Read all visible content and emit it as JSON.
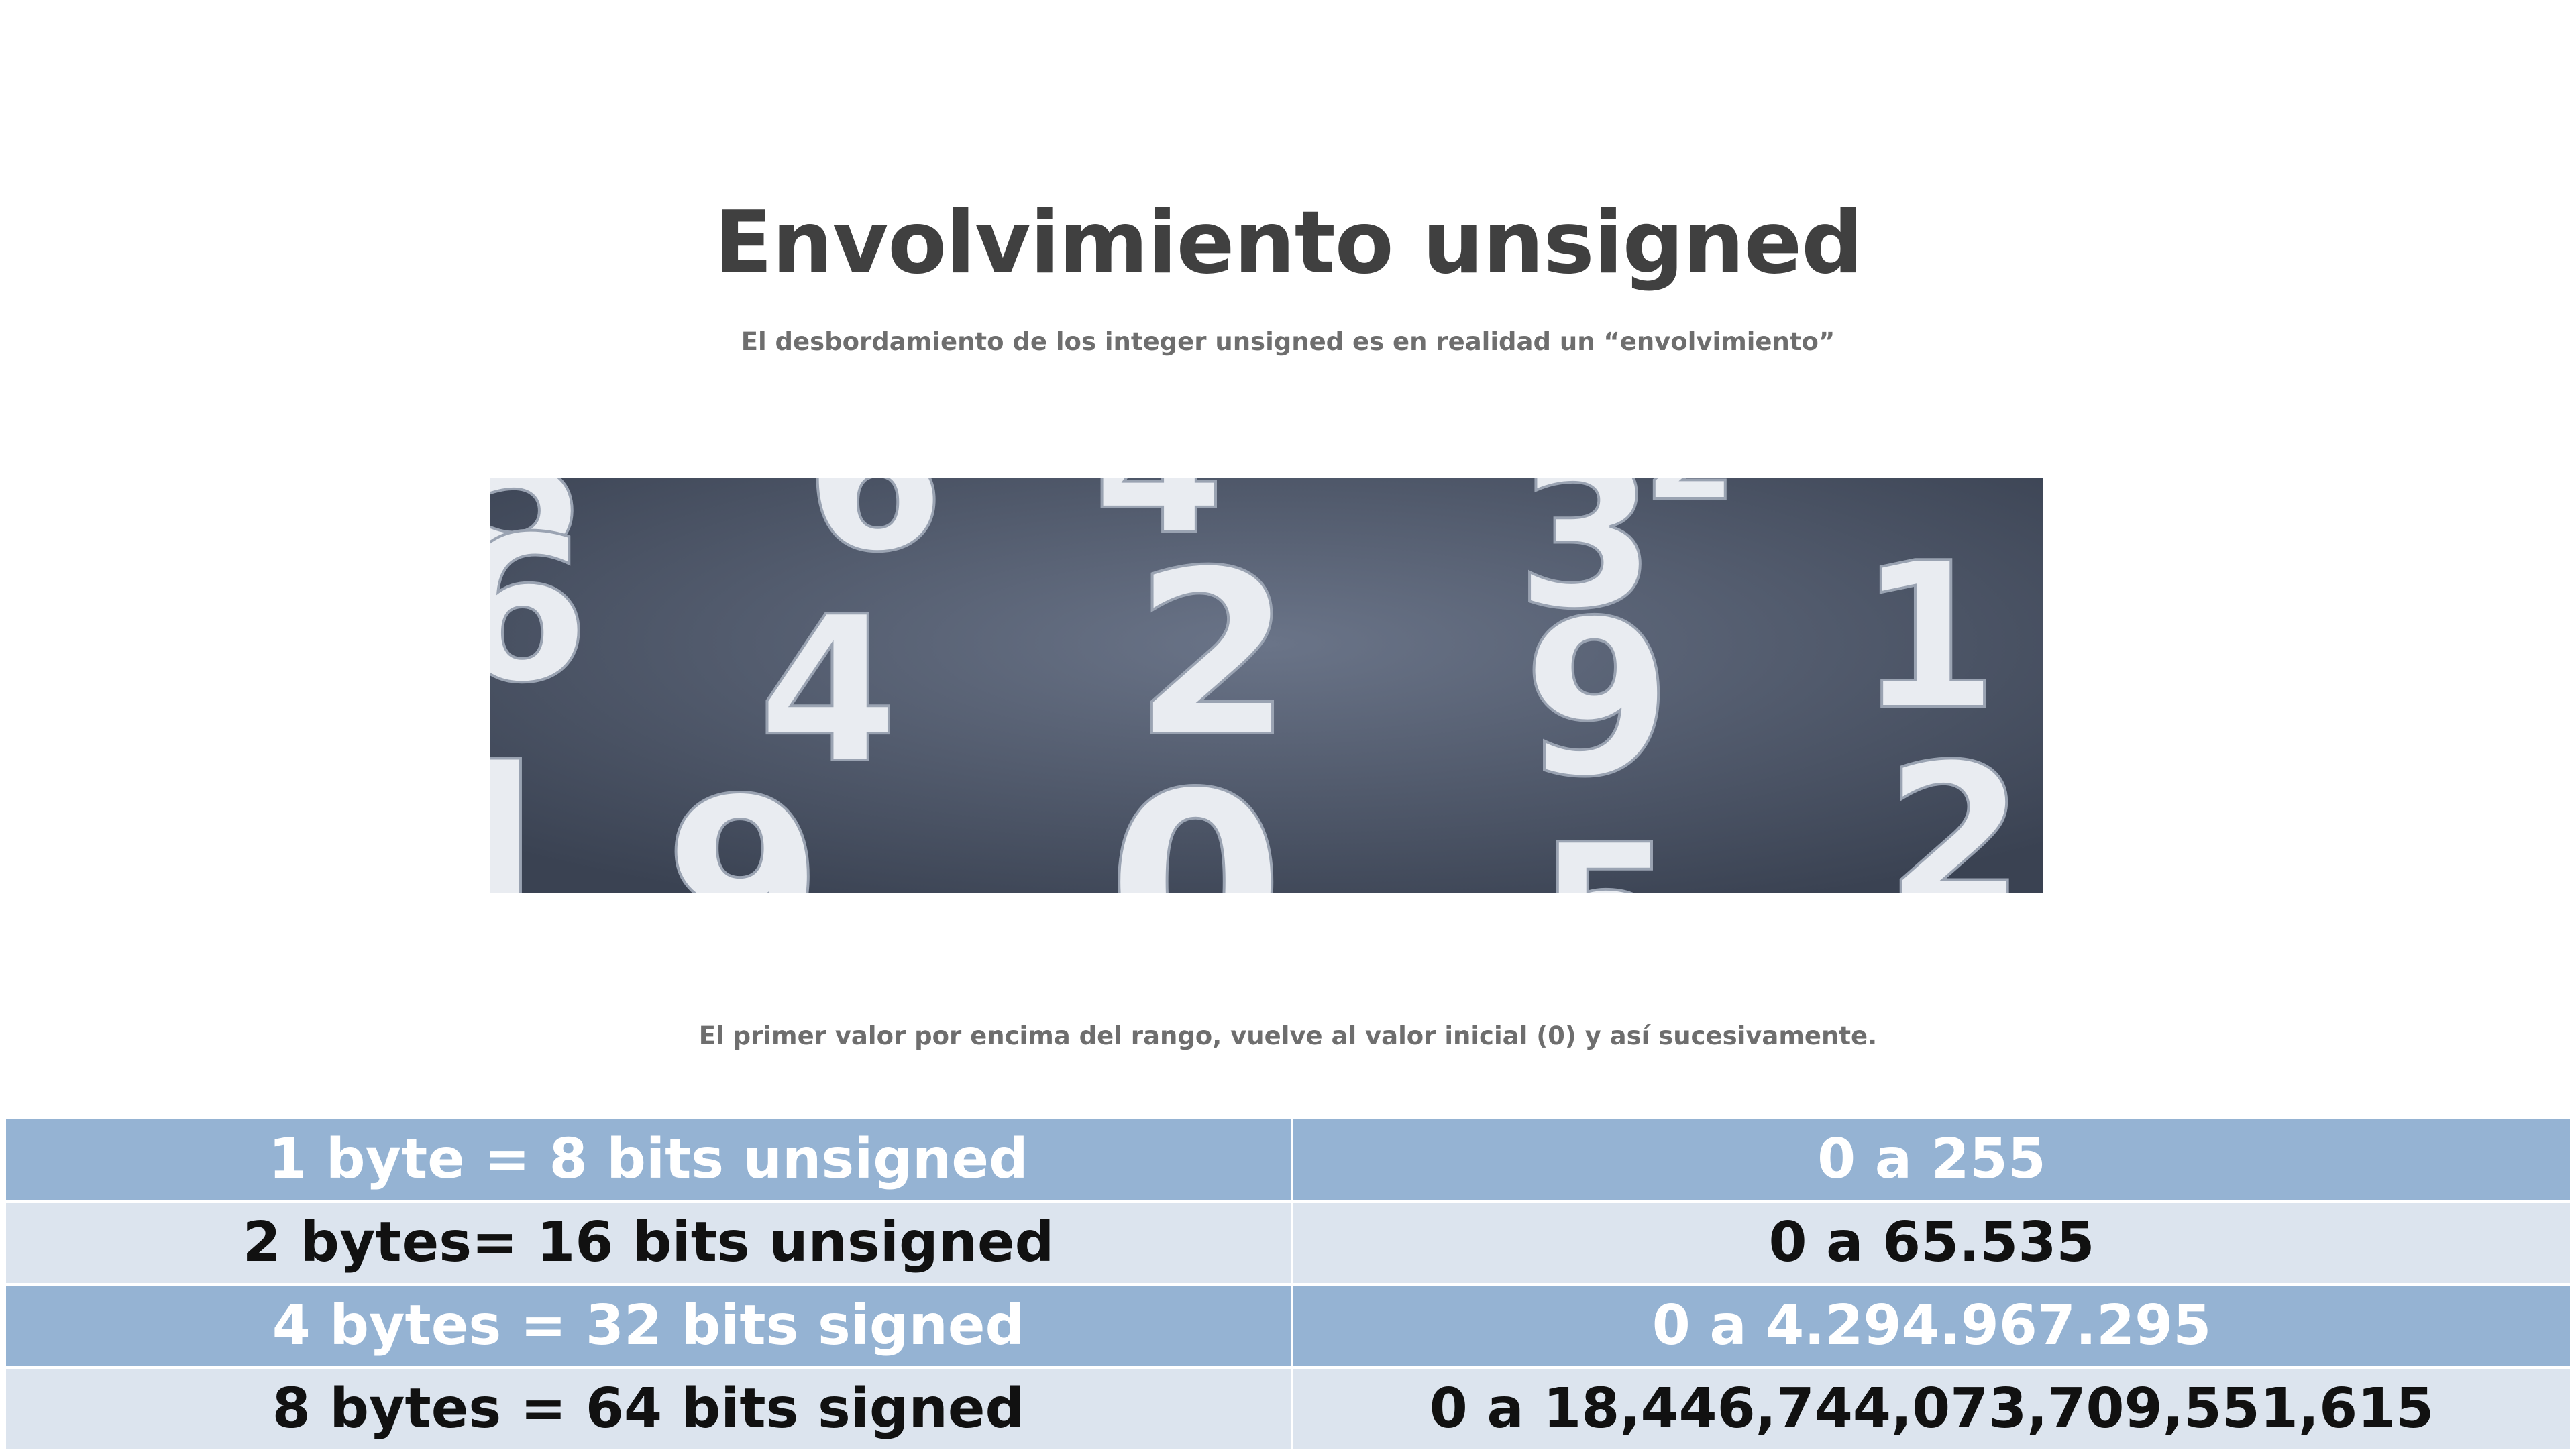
{
  "slide": {
    "title": "Envolvimiento unsigned",
    "subtitle": "El desbordamiento de los integer unsigned es en realidad un “envolvimiento”",
    "note": "El primer valor por encima del rango, vuelve al valor inicial (0) y así sucesivamente."
  },
  "photo": {
    "digits": [
      "5",
      "6",
      "4",
      "3",
      "6",
      "2",
      "1",
      "4",
      "2",
      "9",
      "9",
      "0",
      "1",
      "5",
      "2"
    ]
  },
  "table": {
    "rows": [
      {
        "left": "1 byte = 8 bits unsigned",
        "right": "0 a 255"
      },
      {
        "left": "2 bytes= 16 bits unsigned",
        "right": "0 a 65.535"
      },
      {
        "left": "4 bytes = 32 bits signed",
        "right": "0 a 4.294.967.295"
      },
      {
        "left": "8 bytes = 64 bits signed",
        "right": "0 a 18,446,744,073,709,551,615"
      }
    ]
  },
  "colors": {
    "title": "#404040",
    "subtitle": "#6e6e6e",
    "row_dark": "#95b3d3",
    "row_light": "#dce4ee"
  }
}
